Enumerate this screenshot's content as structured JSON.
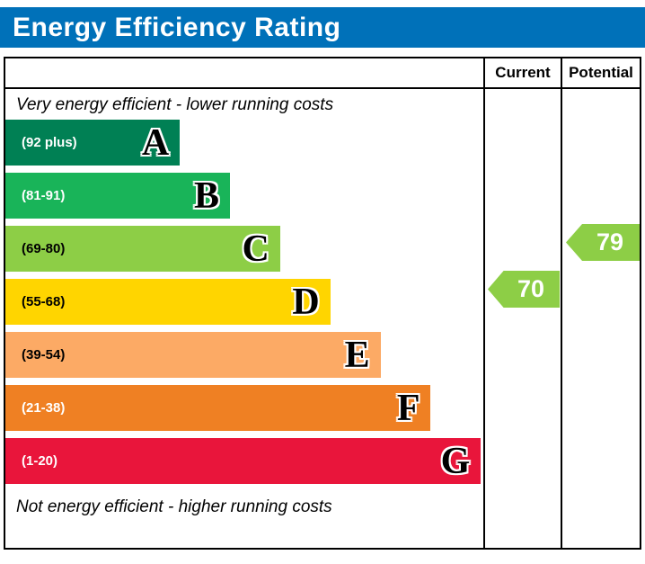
{
  "title": "Energy Efficiency Rating",
  "columns": {
    "current_label": "Current",
    "potential_label": "Potential"
  },
  "captions": {
    "top": "Very energy efficient - lower running costs",
    "bottom": "Not energy efficient - higher running costs"
  },
  "bands": [
    {
      "letter": "A",
      "range": "(92 plus)",
      "color": "#008054"
    },
    {
      "letter": "B",
      "range": "(81-91)",
      "color": "#19b459"
    },
    {
      "letter": "C",
      "range": "(69-80)",
      "color": "#8dce46"
    },
    {
      "letter": "D",
      "range": "(55-68)",
      "color": "#ffd500"
    },
    {
      "letter": "E",
      "range": "(39-54)",
      "color": "#fcaa65"
    },
    {
      "letter": "F",
      "range": "(21-38)",
      "color": "#ef8023"
    },
    {
      "letter": "G",
      "range": "(1-20)",
      "color": "#e9153b"
    }
  ],
  "ratings": {
    "current": {
      "value": "70",
      "band": "C",
      "color": "#8dce46"
    },
    "potential": {
      "value": "79",
      "band": "C",
      "color": "#8dce46"
    }
  },
  "chart_data": {
    "type": "bar",
    "title": "Energy Efficiency Rating",
    "categories": [
      "A (92 plus)",
      "B (81-91)",
      "C (69-80)",
      "D (55-68)",
      "E (39-54)",
      "F (21-38)",
      "G (1-20)"
    ],
    "band_colors": [
      "#008054",
      "#19b459",
      "#8dce46",
      "#ffd500",
      "#fcaa65",
      "#ef8023",
      "#e9153b"
    ],
    "band_widths_relative": [
      0.365,
      0.47,
      0.575,
      0.68,
      0.785,
      0.89,
      0.995
    ],
    "scale": [
      1,
      100
    ],
    "series": [
      {
        "name": "Current",
        "values": [
          70
        ],
        "band": "C"
      },
      {
        "name": "Potential",
        "values": [
          79
        ],
        "band": "C"
      }
    ],
    "annotations": [
      "Very energy efficient - lower running costs",
      "Not energy efficient - higher running costs"
    ],
    "legend_position": "top-right-columns"
  }
}
